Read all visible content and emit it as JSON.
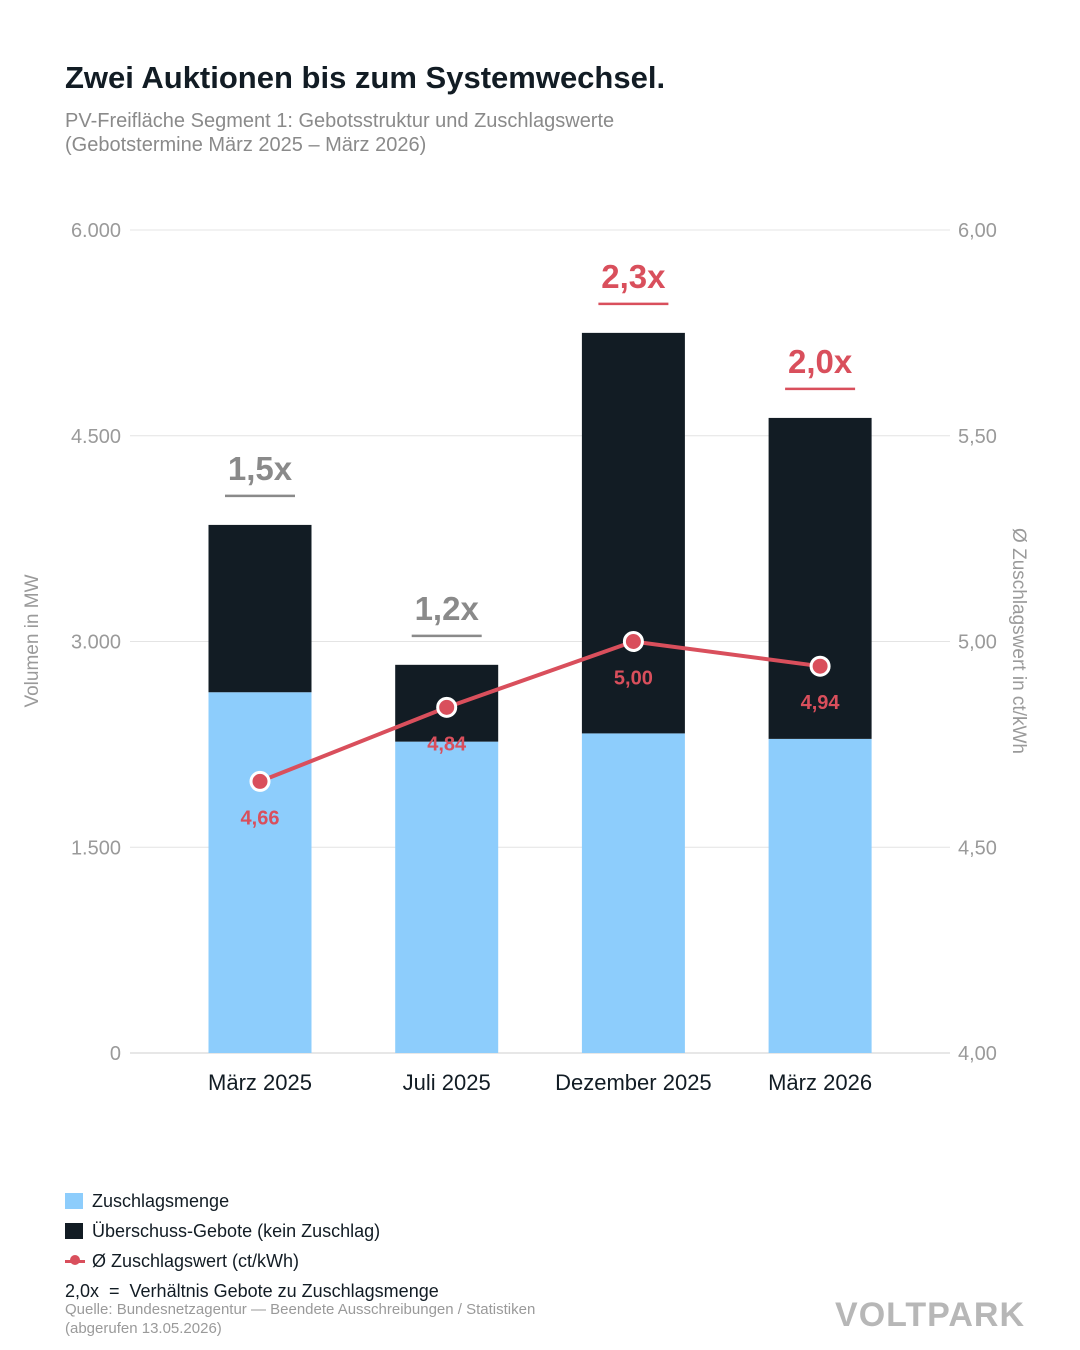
{
  "title": "Zwei Auktionen bis zum Systemwechsel.",
  "subtitle_line1": "PV-Freifläche Segment 1: Gebotsstruktur und Zuschlagswerte",
  "subtitle_line2": "(Gebotstermine März 2025 – März 2026)",
  "colors": {
    "zuschlag": "#8dcdfc",
    "ueberschuss": "#121c24",
    "line": "#d94f5c",
    "ratio_gray": "#8a8a8a",
    "ratio_red": "#d94f5c"
  },
  "chart_data": {
    "type": "bar",
    "stacked": true,
    "categories": [
      "März 2025",
      "Juli 2025",
      "Dezember 2025",
      "März 2026"
    ],
    "series": [
      {
        "name": "Zuschlagsmenge",
        "values": [
          2630,
          2270,
          2330,
          2290
        ]
      },
      {
        "name": "Überschuss-Gebote (kein Zuschlag)",
        "values": [
          1220,
          560,
          2920,
          2340
        ]
      }
    ],
    "line_series": {
      "name": "Ø Zuschlagswert (ct/kWh)",
      "values": [
        4.66,
        4.84,
        5.0,
        4.94
      ],
      "labels": [
        "4,66",
        "4,84",
        "5,00",
        "4,94"
      ]
    },
    "ratio_labels": [
      "1,5x",
      "1,2x",
      "2,3x",
      "2,0x"
    ],
    "ratio_highlight": [
      false,
      false,
      true,
      true
    ],
    "ylabel": "Volumen in MW",
    "y2label": "Ø Zuschlagswert in ct/kWh",
    "ylim": [
      0,
      6000
    ],
    "y2lim": [
      4.0,
      6.0
    ],
    "yticks": [
      0,
      1500,
      3000,
      4500,
      6000
    ],
    "ytick_labels": [
      "0",
      "1.500",
      "3.000",
      "4.500",
      "6.000"
    ],
    "y2ticks": [
      4.0,
      4.5,
      5.0,
      5.5,
      6.0
    ],
    "y2tick_labels": [
      "4,00",
      "4,50",
      "5,00",
      "5,50",
      "6,00"
    ],
    "grid": true
  },
  "legend": {
    "item1": "Zuschlagsmenge",
    "item2": "Überschuss-Gebote (kein Zuschlag)",
    "item3": "Ø Zuschlagswert (ct/kWh)",
    "ratio_note": "2,0x  =  Verhältnis Gebote zu Zuschlagsmenge"
  },
  "source_line1": "Quelle: Bundesnetzagentur — Beendete Ausschreibungen / Statistiken",
  "source_line2": "(abgerufen 13.05.2026)",
  "logo": "VOLTPARK"
}
